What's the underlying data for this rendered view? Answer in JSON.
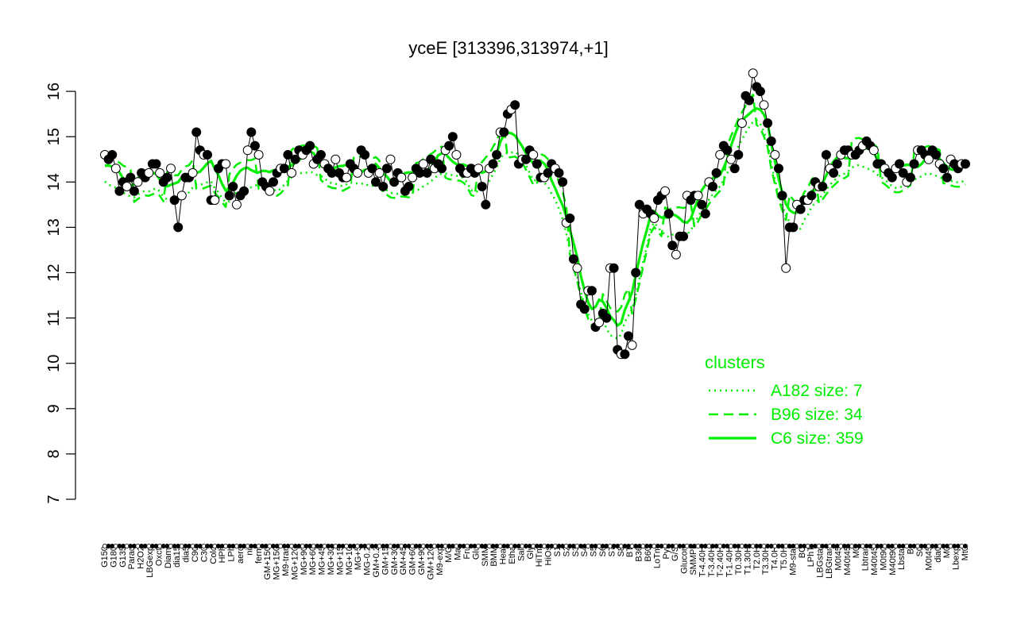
{
  "chart_data": {
    "type": "line",
    "title": "yceE [313396,313974,+1]",
    "xlabel": "",
    "ylabel": "",
    "ylim": [
      7,
      16.5
    ],
    "yticks": [
      7,
      8,
      9,
      10,
      11,
      12,
      13,
      14,
      15,
      16
    ],
    "x_tick_labels": [
      "G150",
      "G180",
      "G135",
      "Paraq",
      "H2O2",
      "LBGexp",
      "Oxctl",
      "Diami",
      "dia15",
      "dia5",
      "C90",
      "C30",
      "Cold",
      "HPh",
      "LPh",
      "aero",
      "nit",
      "ferm",
      "GM+150",
      "MG+150",
      "M9-tran",
      "MG+120",
      "MG+90",
      "MG+60",
      "MG+45",
      "MG+30",
      "MG+15",
      "MG+10",
      "MG+5",
      "MG-0.2",
      "GM+0.2",
      "GM+15",
      "GM+30",
      "GM+45",
      "GM+60",
      "GM+90",
      "GM+120",
      "M9-exp",
      "M/G",
      "Mal",
      "Fru",
      "Glu",
      "SMM",
      "BMM",
      "Heat",
      "Etha",
      "Salt",
      "Gly",
      "HiTm",
      "HiOs",
      "S1",
      "S2",
      "S3",
      "S4",
      "S5",
      "S6",
      "S7",
      "S8",
      "BT",
      "B36",
      "B60",
      "LoTm",
      "Pyr",
      "G/S",
      "Glucon",
      "SMMPr",
      "T-4.40H",
      "T-3.40H",
      "T-2.40H",
      "T-1.40H",
      "T0.30H",
      "T1.30H",
      "T2.0H",
      "T3.30H",
      "T4.0H",
      "T5.0H",
      "M9-stat",
      "BC",
      "LPhT",
      "LBGstat",
      "LBGtran",
      "M0t45",
      "M40t45",
      "M0",
      "Lbtran",
      "M40t45",
      "M0t90",
      "M40t90",
      "Lbstat",
      "BI",
      "S0",
      "M0t45",
      "dia0",
      "M0",
      "Lbexp",
      "Mt0"
    ],
    "series": [
      {
        "values": [
          14.6,
          14.5,
          14.6,
          14.3,
          13.8,
          14.0,
          13.9,
          14.1,
          13.8,
          14.0,
          14.2,
          14.1,
          14.2,
          14.4,
          14.4,
          14.2,
          14.0,
          14.1,
          14.3,
          13.6,
          13.0,
          13.7,
          14.1,
          14.1,
          14.2,
          15.1,
          14.7,
          14.6,
          14.6,
          13.6,
          13.6,
          14.3,
          14.4,
          14.4,
          13.7,
          13.9,
          13.5,
          13.7,
          13.8,
          14.7,
          15.1,
          14.8,
          14.6,
          14.0,
          13.9,
          13.8,
          14.0,
          14.2,
          14.3,
          14.3,
          14.6,
          14.2,
          14.5,
          14.7,
          14.6,
          14.7,
          14.8,
          14.4,
          14.5,
          14.6,
          14.4,
          14.3,
          14.2,
          14.5,
          14.2,
          14.1,
          14.1,
          14.4,
          14.3,
          14.2,
          14.7,
          14.6,
          14.2,
          14.3,
          14.0,
          14.2,
          13.9,
          14.3,
          14.5,
          14.0,
          14.2,
          14.1,
          13.8,
          13.9,
          14.1,
          14.3,
          14.2,
          14.4,
          14.2,
          14.5,
          14.3,
          14.4,
          14.3,
          14.7,
          14.8,
          15.0,
          14.6,
          14.3,
          14.2,
          14.2,
          14.3,
          14.2,
          14.3,
          13.9,
          13.5,
          14.3,
          14.4,
          14.6,
          15.1,
          15.1,
          15.5,
          15.6,
          15.7,
          14.4,
          14.5,
          14.5,
          14.7,
          14.6,
          14.4,
          14.1,
          14.1,
          14.2,
          14.4,
          14.3,
          14.2,
          14.0,
          13.1,
          13.2,
          12.3,
          12.1,
          11.3,
          11.2,
          11.6,
          11.6,
          10.8,
          10.9,
          11.1,
          11.0,
          12.1,
          12.1,
          10.3,
          10.2,
          10.2,
          10.6,
          10.4,
          12.0,
          13.5,
          13.3,
          13.4,
          13.3,
          13.2,
          13.6,
          13.7,
          13.8,
          13.3,
          12.6,
          12.4,
          12.8,
          12.8,
          13.7,
          13.6,
          13.7,
          13.7,
          13.5,
          13.3,
          14.0,
          13.9,
          14.2,
          14.6,
          14.8,
          14.7,
          14.5,
          14.3,
          14.6,
          15.3,
          15.9,
          15.8,
          16.4,
          16.1,
          16.0,
          15.7,
          15.3,
          14.9,
          14.6,
          14.3,
          13.7,
          12.1,
          13.0,
          13.0,
          13.5,
          13.4,
          13.6,
          13.6,
          13.7,
          14.0,
          13.9,
          13.9,
          14.6,
          14.3,
          14.2,
          14.4,
          14.6,
          14.7,
          14.7,
          14.6,
          14.6,
          14.7,
          14.8,
          14.9,
          14.8,
          14.7,
          14.4,
          14.4,
          14.3,
          14.2,
          14.1,
          14.3,
          14.4,
          14.2,
          14.0,
          14.1,
          14.4,
          14.7,
          14.7,
          14.6,
          14.5,
          14.7,
          14.6,
          14.4,
          14.3,
          14.1,
          14.5,
          14.4,
          14.3,
          14.4,
          14.4
        ]
      }
    ],
    "cluster_lines": [
      {
        "name": "A182 size: 7",
        "style": "dotted"
      },
      {
        "name": "B96 size: 34",
        "style": "dashed"
      },
      {
        "name": "C6 size: 359",
        "style": "solid"
      }
    ],
    "legend": {
      "title": "clusters",
      "placement": "right"
    },
    "colors": {
      "cluster": "#00ee00",
      "points_filled": "#000000",
      "points_open": "#ffffff",
      "axes": "#000000"
    },
    "grid": false
  }
}
